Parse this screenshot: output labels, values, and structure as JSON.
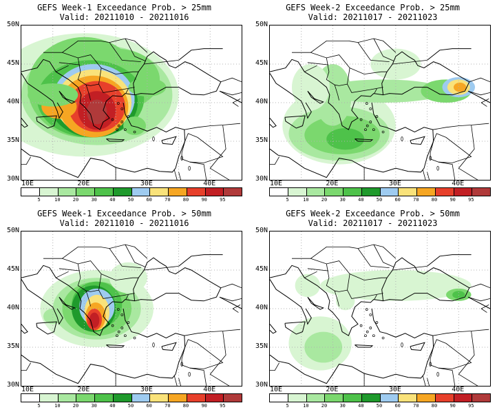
{
  "panels": [
    {
      "title": "GEFS Week-1 Exceedance Prob. > 25mm",
      "valid": "Valid: 20211010 - 20211016"
    },
    {
      "title": "GEFS Week-2 Exceedance Prob. > 25mm",
      "valid": "Valid: 20211017 - 20211023"
    },
    {
      "title": "GEFS Week-1 Exceedance Prob. > 50mm",
      "valid": "Valid: 20211010 - 20211016"
    },
    {
      "title": "GEFS Week-2 Exceedance Prob. > 50mm",
      "valid": "Valid: 20211017 - 20211023"
    }
  ],
  "lat_labels": [
    "50N",
    "45N",
    "40N",
    "35N",
    "30N"
  ],
  "lon_labels": [
    "10E",
    "20E",
    "30E",
    "40E"
  ],
  "colorbar": {
    "ticks": [
      "5",
      "10",
      "20",
      "30",
      "40",
      "50",
      "60",
      "70",
      "80",
      "90",
      "95"
    ],
    "colors": [
      "#ffffff",
      "#d8f5d2",
      "#a9e8a0",
      "#7bd86e",
      "#4ec24a",
      "#1f9a2c",
      "#9ecbf0",
      "#f9e27a",
      "#f6a623",
      "#e7402b",
      "#c21f24",
      "#b03a3a"
    ]
  },
  "map_extent": {
    "lon": [
      10,
      45
    ],
    "lat": [
      30,
      50
    ]
  }
}
